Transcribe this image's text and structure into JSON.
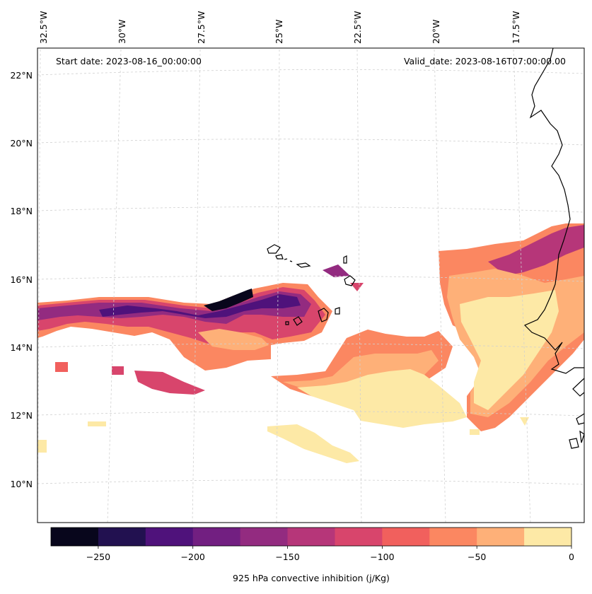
{
  "header": {
    "start_date": "Start date: 2023-08-16_00:00:00",
    "valid_date": "Valid_date: 2023-08-16T07:00:00.00"
  },
  "longitude_labels": [
    "32.5°W",
    "30°W",
    "27.5°W",
    "25°W",
    "22.5°W",
    "20°W",
    "17.5°W"
  ],
  "latitude_labels": [
    "22°N",
    "20°N",
    "18°N",
    "16°N",
    "14°N",
    "12°N",
    "10°N"
  ],
  "colorbar": {
    "label": "925 hPa convective inhibition (j/Kg)",
    "ticks": [
      "−250",
      "−200",
      "−150",
      "−100",
      "−50",
      "0"
    ],
    "levels": [
      -275,
      -250,
      -225,
      -200,
      -175,
      -150,
      -125,
      -100,
      -75,
      -50,
      -25,
      0
    ],
    "colors": [
      "#08061c",
      "#221150",
      "#4f127b",
      "#721f81",
      "#932b80",
      "#b63679",
      "#d8456c",
      "#f1605d",
      "#fb8761",
      "#feb078",
      "#fde9a6"
    ]
  },
  "map_style": {
    "coastline_color": "#000000",
    "grid_color": "#d0d0d0"
  }
}
